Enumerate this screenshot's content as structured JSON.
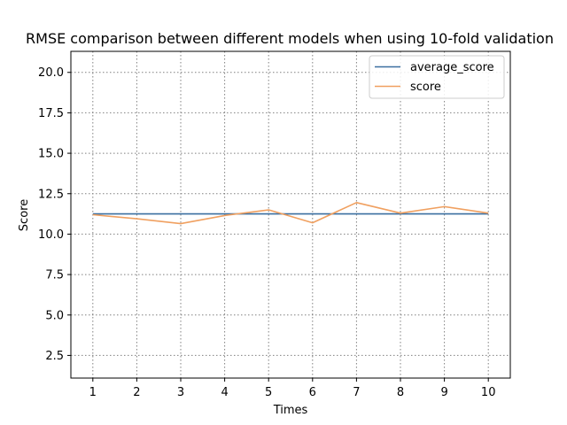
{
  "chart_data": {
    "type": "line",
    "title": "RMSE comparison between different models when using 10-fold validation",
    "xlabel": "Times",
    "ylabel": "Score",
    "x": [
      1,
      2,
      3,
      4,
      5,
      6,
      7,
      8,
      9,
      10
    ],
    "xlim": [
      0.5,
      10.5
    ],
    "ylim": [
      1.1,
      21.3
    ],
    "yticks": [
      2.5,
      5.0,
      7.5,
      10.0,
      12.5,
      15.0,
      17.5,
      20.0
    ],
    "grid": true,
    "legend_position": "top-right",
    "series": [
      {
        "name": "average_score",
        "color": "#3a6fa0",
        "values": [
          11.25,
          11.25,
          11.25,
          11.25,
          11.25,
          11.25,
          11.25,
          11.25,
          11.25,
          11.25
        ]
      },
      {
        "name": "score",
        "color": "#f0a060",
        "values": [
          11.2,
          10.95,
          10.65,
          11.15,
          11.5,
          10.7,
          11.95,
          11.3,
          11.7,
          11.3
        ]
      }
    ]
  }
}
